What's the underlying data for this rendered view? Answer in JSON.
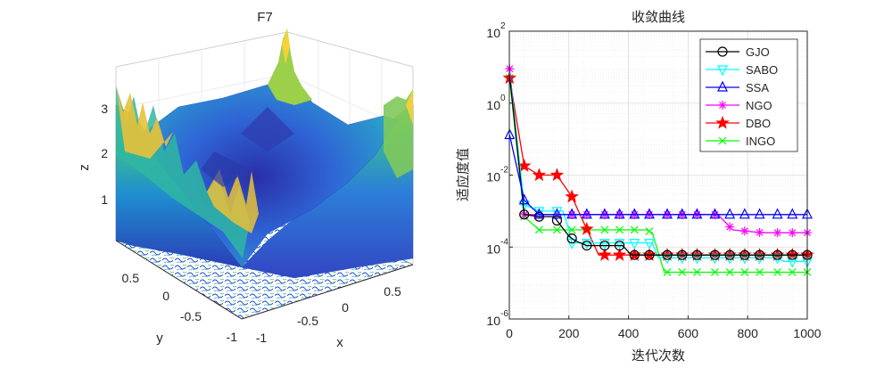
{
  "surface_plot": {
    "title": "F7",
    "xlabel": "x",
    "ylabel": "y",
    "zlabel": "z",
    "x_ticks": [
      "-1",
      "-0.5",
      "0",
      "0.5"
    ],
    "y_ticks": [
      "-1",
      "-0.5",
      "0",
      "0.5"
    ],
    "z_ticks": [
      "1",
      "2",
      "3"
    ]
  },
  "chart_data": {
    "type": "line",
    "title": "收敛曲线",
    "xlabel": "迭代次数",
    "ylabel": "适应度值",
    "yscale": "log",
    "xlim": [
      0,
      1000
    ],
    "ylim": [
      1e-06,
      100
    ],
    "x_ticks": [
      "0",
      "200",
      "400",
      "600",
      "800",
      "1000"
    ],
    "y_ticks": [
      {
        "base": "10",
        "exp": "-6",
        "value": 1e-06
      },
      {
        "base": "10",
        "exp": "-4",
        "value": 0.0001
      },
      {
        "base": "10",
        "exp": "-2",
        "value": 0.01
      },
      {
        "base": "10",
        "exp": "0",
        "value": 1
      },
      {
        "base": "10",
        "exp": "2",
        "value": 100
      }
    ],
    "legend_position": "top-right",
    "series": [
      {
        "name": "GJO",
        "color": "#000000",
        "marker": "circle",
        "points": [
          [
            1,
            6
          ],
          [
            50,
            0.0008
          ],
          [
            100,
            0.0007
          ],
          [
            150,
            0.0007
          ],
          [
            200,
            0.0002
          ],
          [
            220,
            0.00015
          ],
          [
            260,
            0.00011
          ],
          [
            300,
            0.00011
          ],
          [
            350,
            0.00011
          ],
          [
            380,
            0.00011
          ],
          [
            410,
            6e-05
          ],
          [
            520,
            6e-05
          ],
          [
            700,
            6e-05
          ],
          [
            1000,
            6e-05
          ]
        ],
        "markers_x": [
          50,
          100,
          160,
          210,
          260,
          320,
          370,
          420,
          470,
          530,
          580,
          630,
          690,
          740,
          790,
          840,
          900,
          950,
          1000
        ]
      },
      {
        "name": "SABO",
        "color": "#00ffff",
        "marker": "triangle-down",
        "points": [
          [
            1,
            7
          ],
          [
            50,
            0.0015
          ],
          [
            100,
            0.001
          ],
          [
            180,
            0.001
          ],
          [
            200,
            0.0003
          ],
          [
            210,
            0.00013
          ],
          [
            380,
            0.00013
          ],
          [
            480,
            0.00013
          ],
          [
            500,
            5e-05
          ],
          [
            900,
            5e-05
          ],
          [
            920,
            4e-05
          ],
          [
            1000,
            4e-05
          ]
        ],
        "markers_x": [
          50,
          100,
          160,
          210,
          260,
          320,
          370,
          420,
          470,
          530,
          580,
          630,
          690,
          740,
          790,
          840,
          900,
          950,
          1000
        ]
      },
      {
        "name": "SSA",
        "color": "#0000ff",
        "marker": "triangle-up",
        "points": [
          [
            1,
            0.13
          ],
          [
            50,
            0.002
          ],
          [
            100,
            0.0008
          ],
          [
            1000,
            0.0008
          ]
        ],
        "markers_x": [
          1,
          50,
          100,
          160,
          210,
          260,
          320,
          370,
          420,
          470,
          530,
          580,
          630,
          690,
          740,
          790,
          840,
          900,
          950,
          1000
        ]
      },
      {
        "name": "NGO",
        "color": "#ff00ff",
        "marker": "asterisk",
        "points": [
          [
            1,
            9
          ],
          [
            50,
            0.0008
          ],
          [
            700,
            0.0008
          ],
          [
            750,
            0.0003
          ],
          [
            850,
            0.00025
          ],
          [
            1000,
            0.00025
          ]
        ],
        "markers_x": [
          1,
          50,
          100,
          160,
          210,
          260,
          320,
          370,
          420,
          470,
          530,
          580,
          630,
          690,
          740,
          790,
          840,
          900,
          950,
          1000
        ]
      },
      {
        "name": "DBO",
        "color": "#ff0000",
        "marker": "star",
        "points": [
          [
            1,
            5
          ],
          [
            50,
            0.018
          ],
          [
            100,
            0.01
          ],
          [
            160,
            0.01
          ],
          [
            210,
            0.0025
          ],
          [
            300,
            6e-05
          ],
          [
            1000,
            6e-05
          ]
        ],
        "markers_x": [
          1,
          50,
          100,
          160,
          210,
          260,
          320,
          370,
          420,
          470,
          530,
          580,
          630,
          690,
          740,
          790,
          840,
          900,
          950,
          1000
        ]
      },
      {
        "name": "INGO",
        "color": "#00ff00",
        "marker": "x",
        "points": [
          [
            1,
            5
          ],
          [
            50,
            0.0007
          ],
          [
            100,
            0.0003
          ],
          [
            460,
            0.0003
          ],
          [
            480,
            0.00025
          ],
          [
            520,
            2e-05
          ],
          [
            1000,
            2e-05
          ]
        ],
        "markers_x": [
          1,
          50,
          100,
          160,
          210,
          260,
          320,
          370,
          420,
          470,
          530,
          580,
          630,
          690,
          740,
          790,
          840,
          900,
          950,
          1000
        ]
      }
    ]
  }
}
